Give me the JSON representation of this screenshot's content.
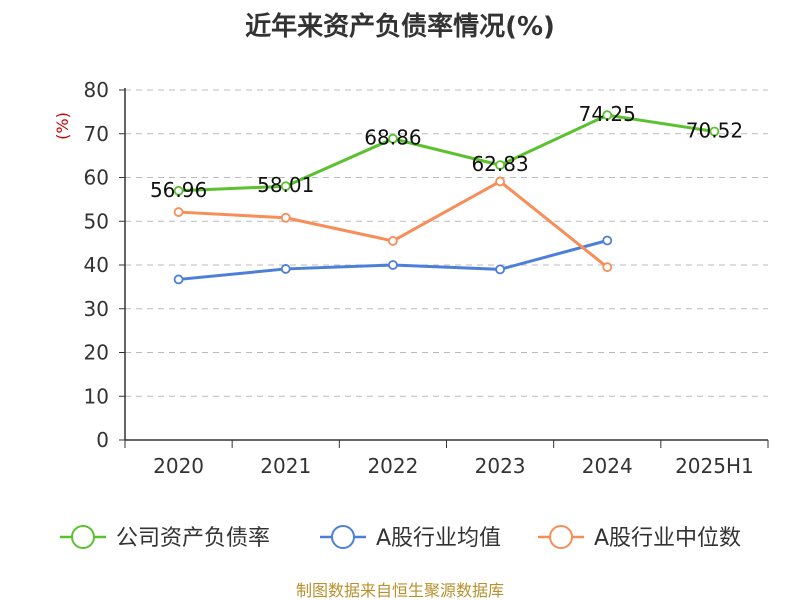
{
  "chart_data": {
    "type": "line",
    "title": "近年来资产负债率情况(%)",
    "ylabel": "(%)",
    "xlabel": "",
    "categories": [
      "2020",
      "2021",
      "2022",
      "2023",
      "2024",
      "2025H1"
    ],
    "ylim": [
      0,
      80
    ],
    "yticks": [
      0,
      10,
      20,
      30,
      40,
      50,
      60,
      70,
      80
    ],
    "grid": "horizontal-dashed",
    "legend_position": "bottom",
    "series": [
      {
        "name": "公司资产负债率",
        "color": "#5cc12f",
        "values": [
          56.96,
          58.01,
          68.86,
          62.83,
          74.25,
          70.52
        ],
        "labels": [
          "56.96",
          "58.01",
          "68.86",
          "62.83",
          "74.25",
          "70.52"
        ]
      },
      {
        "name": "A股行业均值",
        "color": "#4c7fd9",
        "values": [
          36.7,
          39.1,
          40.0,
          39.0,
          45.6,
          null
        ],
        "labels": []
      },
      {
        "name": "A股行业中位数",
        "color": "#f78d57",
        "values": [
          52.1,
          50.8,
          45.5,
          59.1,
          39.5,
          null
        ],
        "labels": []
      }
    ]
  },
  "footer": {
    "source": "制图数据来自恒生聚源数据库"
  }
}
